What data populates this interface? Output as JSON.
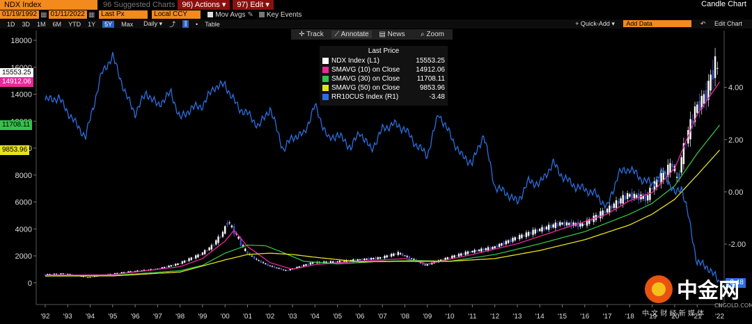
{
  "toolbar": {
    "ticker": "NDX Index",
    "suggested": "96 Suggested Charts",
    "actions": "96) Actions ▾",
    "edit": "97) Edit ▾",
    "title": "Candle Chart"
  },
  "settings": {
    "start_date": "01/19/1992",
    "end_date": "01/11/2022",
    "price_field": "Last Px",
    "currency": "Local CCY",
    "mov_avgs": "Mov Avgs",
    "key_events": "Key Events"
  },
  "periods": [
    "1D",
    "3D",
    "1M",
    "6M",
    "YTD",
    "1Y",
    "5Y",
    "Max"
  ],
  "selected_period": "5Y",
  "frequency": "Daily ▾",
  "table_label": "Table",
  "quick_add": "+ Quick-Add ▾",
  "add_data_placeholder": "Add Data",
  "edit_chart": "Edit Chart",
  "tools": [
    "Track",
    "Annotate",
    "News",
    "Zoom"
  ],
  "legend": {
    "title": "Last Price",
    "items": [
      {
        "name": "NDX Index  (L1)",
        "value": "15553.25",
        "color": "#ffffff"
      },
      {
        "name": "SMAVG (10)  on Close",
        "value": "14912.06",
        "color": "#e8299a"
      },
      {
        "name": "SMAVG (30)  on Close",
        "value": "11708.11",
        "color": "#33c24a"
      },
      {
        "name": "SMAVG (50)  on Close",
        "value": "9853.96",
        "color": "#e8e21c"
      },
      {
        "name": "RR10CUS Index  (R1)",
        "value": "-3.48",
        "color": "#2a6fe0"
      }
    ]
  },
  "badges": [
    {
      "text": "15553.25",
      "bg": "#ffffff",
      "fg": "#000000",
      "y": 15553.25
    },
    {
      "text": "14912.06",
      "bg": "#e8299a",
      "fg": "#ffffff",
      "y": 14912.06
    },
    {
      "text": "11708.11",
      "bg": "#33c24a",
      "fg": "#000000",
      "y": 11708.11
    },
    {
      "text": "9853.96",
      "bg": "#e8e21c",
      "fg": "#000000",
      "y": 9853.96
    }
  ],
  "right_badge": {
    "text": "-3.48",
    "bg": "#2a6fe0",
    "fg": "#ffffff"
  },
  "watermark": {
    "text": "中金网",
    "sub": "中 文 财 经 新 媒 体",
    "url": "CNGOLD.COM"
  },
  "chart_data": {
    "type": "line",
    "title": "",
    "x_ticks": [
      "'92",
      "'93",
      "'94",
      "'95",
      "'96",
      "'97",
      "'98",
      "'99",
      "'00",
      "'01",
      "'02",
      "'03",
      "'04",
      "'05",
      "'06",
      "'07",
      "'08",
      "'09",
      "'10",
      "'11",
      "'12",
      "'13",
      "'14",
      "'15",
      "'16",
      "'17",
      "'18",
      "'19",
      "'20",
      "'21",
      "'22"
    ],
    "y_left_ticks": [
      0,
      2000,
      4000,
      6000,
      8000,
      10000,
      12000,
      14000,
      16000,
      18000
    ],
    "y_left_range": [
      -1200,
      18000
    ],
    "y_right_ticks": [
      "4.00",
      "2.00",
      "0.00",
      "-2.00"
    ],
    "y_right_range": [
      -4.1,
      5.8
    ],
    "series": [
      {
        "name": "NDX Index  (L1)",
        "axis": "left",
        "x": [
          1992,
          1993,
          1994,
          1995,
          1996,
          1997,
          1998,
          1999,
          1999.5,
          2000,
          2000.2,
          2000.6,
          2001,
          2001.5,
          2002,
          2002.8,
          2003,
          2004,
          2005,
          2006,
          2007,
          2007.8,
          2008.5,
          2009,
          2010,
          2011,
          2012,
          2013,
          2014,
          2015,
          2016,
          2017,
          2018,
          2018.9,
          2019,
          2020,
          2020.2,
          2020.5,
          2021,
          2021.5,
          2021.9,
          2022
        ],
        "y": [
          620,
          680,
          400,
          650,
          850,
          1000,
          1400,
          2100,
          2700,
          3700,
          4600,
          3500,
          2300,
          1700,
          1300,
          900,
          1000,
          1500,
          1550,
          1700,
          1850,
          2200,
          1700,
          1300,
          1850,
          2300,
          2600,
          3300,
          3900,
          4400,
          4300,
          5300,
          6500,
          6300,
          6900,
          8800,
          7500,
          10000,
          12800,
          14000,
          16300,
          15553
        ]
      },
      {
        "name": "SMAVG (10)  on Close",
        "axis": "left",
        "x": [
          1992,
          1995,
          1998,
          1999,
          2000,
          2000.4,
          2001,
          2002,
          2003,
          2004,
          2006,
          2008,
          2009,
          2011,
          2013,
          2015,
          2017,
          2018,
          2019,
          2020,
          2021,
          2022
        ],
        "y": [
          560,
          600,
          1200,
          1800,
          3100,
          3900,
          2700,
          1500,
          1000,
          1350,
          1600,
          1800,
          1400,
          2100,
          2900,
          4000,
          5100,
          6100,
          6700,
          8500,
          12500,
          14912
        ]
      },
      {
        "name": "SMAVG (30)  on Close",
        "axis": "left",
        "x": [
          1992,
          1995,
          1998,
          1999,
          2000,
          2001,
          2001.8,
          2002.5,
          2003.5,
          2005,
          2007,
          2008.5,
          2010,
          2012,
          2014,
          2016,
          2018,
          2019,
          2020,
          2021,
          2022
        ],
        "y": [
          520,
          540,
          900,
          1300,
          2200,
          2800,
          2750,
          2300,
          1600,
          1400,
          1600,
          1650,
          1600,
          2100,
          2900,
          3800,
          5100,
          5900,
          7200,
          9600,
          11708
        ]
      },
      {
        "name": "SMAVG (50)  on Close",
        "axis": "left",
        "x": [
          1992,
          1995,
          1998,
          2000,
          2001,
          2002,
          2003,
          2004,
          2006,
          2008,
          2010,
          2012,
          2014,
          2016,
          2018,
          2019,
          2020,
          2021,
          2022
        ],
        "y": [
          500,
          510,
          800,
          1700,
          2100,
          2200,
          2100,
          1900,
          1550,
          1600,
          1600,
          1800,
          2400,
          3200,
          4300,
          5100,
          6200,
          8000,
          9854
        ]
      },
      {
        "name": "RR10CUS Index  (R1)",
        "axis": "right",
        "x": [
          1992,
          1992.6,
          1993.2,
          1993.8,
          1994.5,
          1995,
          1995.6,
          1996,
          1996.5,
          1997,
          1997.6,
          1998,
          1998.5,
          1999,
          1999.5,
          2000,
          2000.6,
          2001,
          2001.5,
          2002,
          2002.6,
          2003,
          2003.5,
          2004,
          2004.6,
          2005,
          2005.6,
          2006,
          2006.5,
          2007,
          2007.5,
          2008,
          2008.5,
          2009,
          2009.5,
          2010,
          2010.5,
          2011,
          2011.5,
          2012,
          2012.6,
          2013,
          2013.5,
          2014,
          2014.6,
          2015,
          2015.6,
          2016,
          2016.5,
          2017,
          2017.5,
          2018,
          2018.5,
          2019,
          2019.5,
          2020,
          2020.3,
          2020.6,
          2021,
          2021.5,
          2022
        ],
        "y": [
          3.5,
          3.6,
          2.8,
          2.1,
          4.5,
          5.2,
          3.7,
          3.0,
          3.8,
          3.3,
          3.8,
          2.8,
          3.2,
          3.3,
          4.0,
          4.1,
          3.2,
          3.0,
          2.5,
          3.2,
          1.6,
          2.1,
          2.2,
          3.3,
          2.0,
          2.2,
          1.7,
          2.3,
          1.6,
          2.4,
          2.6,
          2.4,
          1.8,
          1.4,
          3.0,
          2.2,
          1.4,
          1.1,
          2.2,
          0.2,
          -0.1,
          -0.4,
          0.4,
          0.3,
          1.1,
          0.6,
          0.2,
          0.1,
          -0.1,
          -0.6,
          0.7,
          0.9,
          0.5,
          0.3,
          0.8,
          -0.1,
          0.2,
          -0.9,
          -2.7,
          -2.9,
          -3.48
        ]
      }
    ],
    "candles_note": "",
    "grid": false,
    "legend_position": "top-center"
  }
}
